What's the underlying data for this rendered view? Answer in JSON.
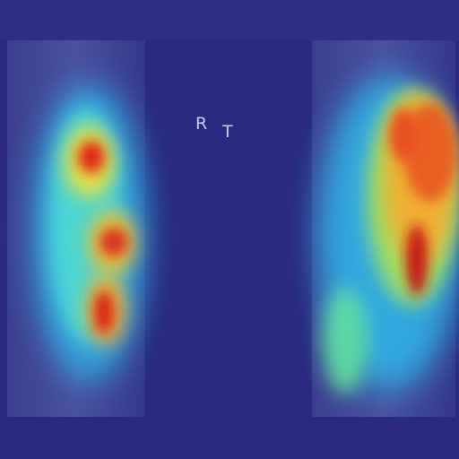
{
  "markers": [
    "R",
    "T"
  ]
}
